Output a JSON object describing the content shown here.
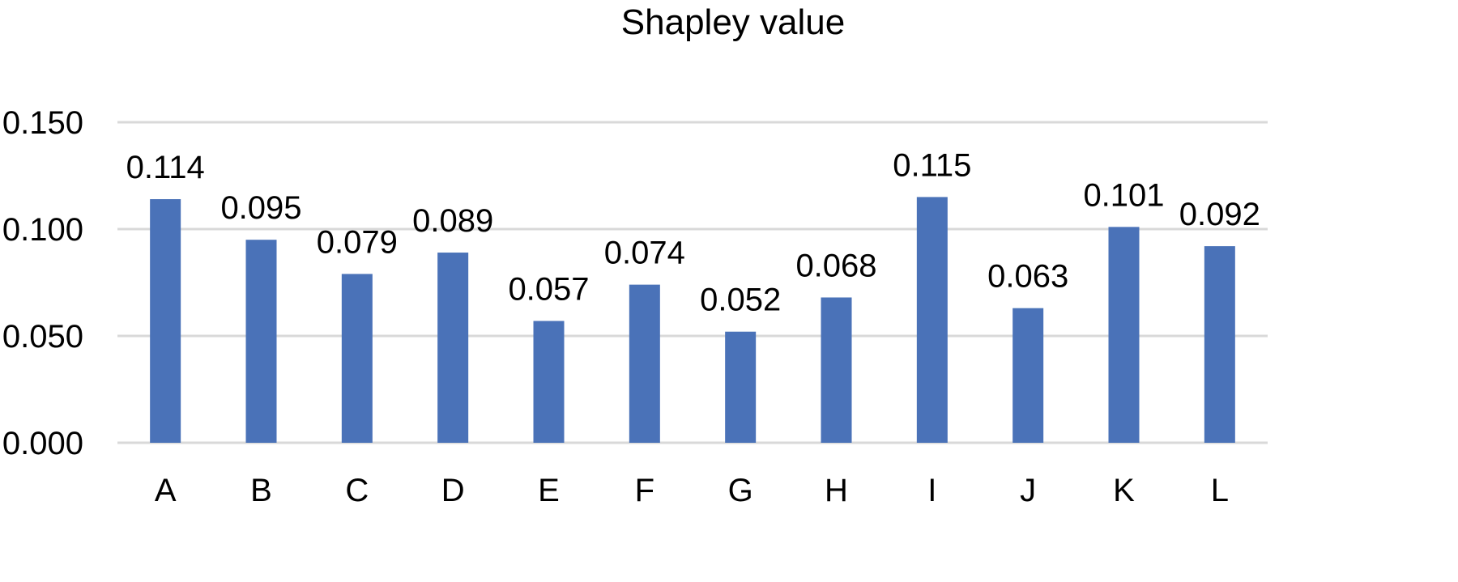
{
  "chart_data": {
    "type": "bar",
    "title": "Shapley value",
    "xlabel": "",
    "ylabel": "",
    "categories": [
      "A",
      "B",
      "C",
      "D",
      "E",
      "F",
      "G",
      "H",
      "I",
      "J",
      "K",
      "L"
    ],
    "values": [
      0.114,
      0.095,
      0.079,
      0.089,
      0.057,
      0.074,
      0.052,
      0.068,
      0.115,
      0.063,
      0.101,
      0.092
    ],
    "data_labels": [
      "0.114",
      "0.095",
      "0.079",
      "0.089",
      "0.057",
      "0.074",
      "0.052",
      "0.068",
      "0.115",
      "0.063",
      "0.101",
      "0.092"
    ],
    "ylim": [
      0,
      0.15
    ],
    "yticks": [
      0,
      0.05,
      0.1,
      0.15
    ],
    "ytick_labels": [
      "0.000",
      "0.050",
      "0.100",
      "0.150"
    ],
    "grid": true,
    "legend": "none",
    "bar_color": "#4a72b8",
    "grid_color": "#d9d9d9"
  }
}
